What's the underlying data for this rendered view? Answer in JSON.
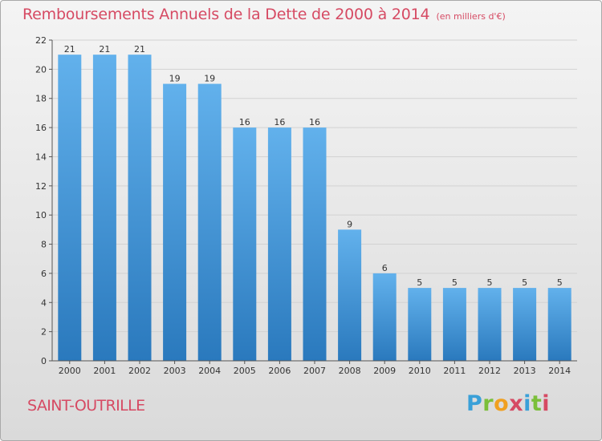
{
  "header": {
    "title": "Remboursements Annuels de la Dette de 2000 à 2014",
    "unit": "(en milliers d'€)"
  },
  "footer": {
    "commune": "SAINT-OUTRILLE",
    "logo": {
      "letters": [
        "P",
        "r",
        "o",
        "x",
        "i",
        "t",
        "i"
      ]
    }
  },
  "colors": {
    "title": "#d64a63",
    "bar_top": "#62b1ec",
    "bar_bottom": "#2a79bd",
    "grid": "#d2d2d2",
    "axis": "#555555",
    "text": "#333333"
  },
  "chart_data": {
    "type": "bar",
    "title": "Remboursements Annuels de la Dette de 2000 à 2014",
    "xlabel": "",
    "ylabel": "",
    "categories": [
      "2000",
      "2001",
      "2002",
      "2003",
      "2004",
      "2005",
      "2006",
      "2007",
      "2008",
      "2009",
      "2010",
      "2011",
      "2012",
      "2013",
      "2014"
    ],
    "values": [
      21,
      21,
      21,
      19,
      19,
      16,
      16,
      16,
      9,
      6,
      5,
      5,
      5,
      5,
      5
    ],
    "ylim": [
      0,
      22
    ],
    "yticks": [
      0,
      2,
      4,
      6,
      8,
      10,
      12,
      14,
      16,
      18,
      20,
      22
    ],
    "grid": true,
    "data_labels": true
  }
}
